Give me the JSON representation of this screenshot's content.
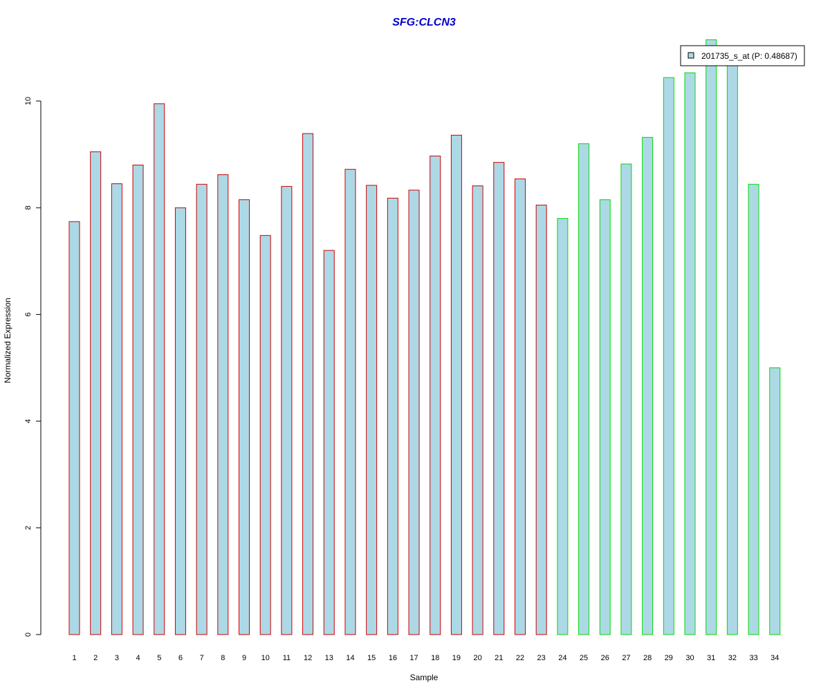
{
  "chart_data": {
    "type": "bar",
    "title": "SFG:CLCN3",
    "title_color": "#0000cc",
    "xlabel": "Sample",
    "ylabel": "Normalized Expression",
    "categories": [
      "1",
      "2",
      "3",
      "4",
      "5",
      "6",
      "7",
      "8",
      "9",
      "10",
      "11",
      "12",
      "13",
      "14",
      "15",
      "16",
      "17",
      "18",
      "19",
      "20",
      "21",
      "22",
      "23",
      "24",
      "25",
      "26",
      "27",
      "28",
      "29",
      "30",
      "31",
      "32",
      "33",
      "34"
    ],
    "series": [
      {
        "name": "201735_s_at (P: 0.48687)",
        "values": [
          7.74,
          9.05,
          8.45,
          8.8,
          9.95,
          8.0,
          8.44,
          8.62,
          8.15,
          7.48,
          8.4,
          9.39,
          7.2,
          8.72,
          8.42,
          8.18,
          8.33,
          8.97,
          9.36,
          8.41,
          8.85,
          8.54,
          8.05,
          7.8,
          9.2,
          8.15,
          8.82,
          9.32,
          10.44,
          10.53,
          11.15,
          10.85,
          8.44,
          5.0
        ],
        "fill_color": "#add8e6"
      }
    ],
    "group_border_colors": [
      "#cc0000",
      "#cc0000",
      "#cc0000",
      "#cc0000",
      "#cc0000",
      "#cc0000",
      "#cc0000",
      "#cc0000",
      "#cc0000",
      "#cc0000",
      "#cc0000",
      "#cc0000",
      "#cc0000",
      "#cc0000",
      "#cc0000",
      "#cc0000",
      "#cc0000",
      "#cc0000",
      "#cc0000",
      "#cc0000",
      "#cc0000",
      "#cc0000",
      "#cc0000",
      "#00dd00",
      "#00dd00",
      "#00dd00",
      "#00dd00",
      "#00dd00",
      "#00dd00",
      "#00dd00",
      "#00dd00",
      "#00dd00",
      "#00dd00",
      "#00dd00"
    ],
    "ylim": [
      0,
      11
    ],
    "yticks": [
      0,
      2,
      4,
      6,
      8,
      10
    ],
    "grid": false,
    "legend_position": "top-right"
  }
}
